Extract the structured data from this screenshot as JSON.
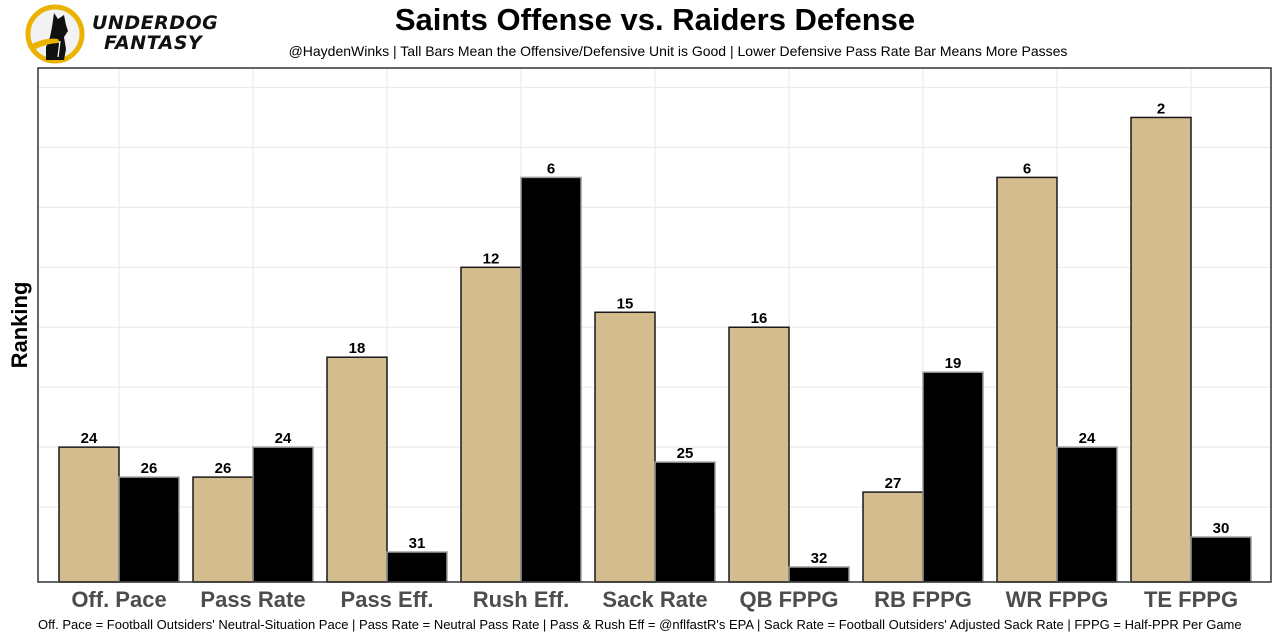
{
  "logo": {
    "line1": "UNDERDOG",
    "line2": "FANTASY",
    "icon": "underdog-dog-logo-icon",
    "ring_color": "#E9B300"
  },
  "caption": "Off. Pace = Football Outsiders' Neutral-Situation Pace | Pass Rate = Neutral Pass Rate | Pass & Rush Eff = @nflfastR's EPA | Sack Rate = Football Outsiders' Adjusted Sack Rate | FPPG = Half-PPR Per Game",
  "chart_data": {
    "type": "bar",
    "title": "Saints Offense vs. Raiders Defense",
    "subtitle": "@HaydenWinks | Tall Bars Mean the Offensive/Defensive Unit is Good | Lower Defensive Pass Rate Bar Means More Passes",
    "xlabel": "",
    "ylabel": "Ranking",
    "categories": [
      "Off. Pace",
      "Pass Rate",
      "Pass Eff.",
      "Rush Eff.",
      "Sack Rate",
      "QB FPPG",
      "RB FPPG",
      "WR FPPG",
      "TE FPPG"
    ],
    "series": [
      {
        "name": "Saints Offense",
        "color": "#D3BC8D",
        "values": [
          24,
          26,
          18,
          12,
          15,
          16,
          27,
          6,
          2
        ]
      },
      {
        "name": "Raiders Defense",
        "color": "#000000",
        "values": [
          26,
          24,
          31,
          6,
          25,
          32,
          19,
          24,
          30
        ]
      }
    ],
    "bar_height_encoding": "33 - rank (rank 1 tallest)",
    "ylim_inverted_rank": [
      0,
      34.3
    ],
    "y_ticks_shown": false,
    "grid": true,
    "legend": "none"
  }
}
